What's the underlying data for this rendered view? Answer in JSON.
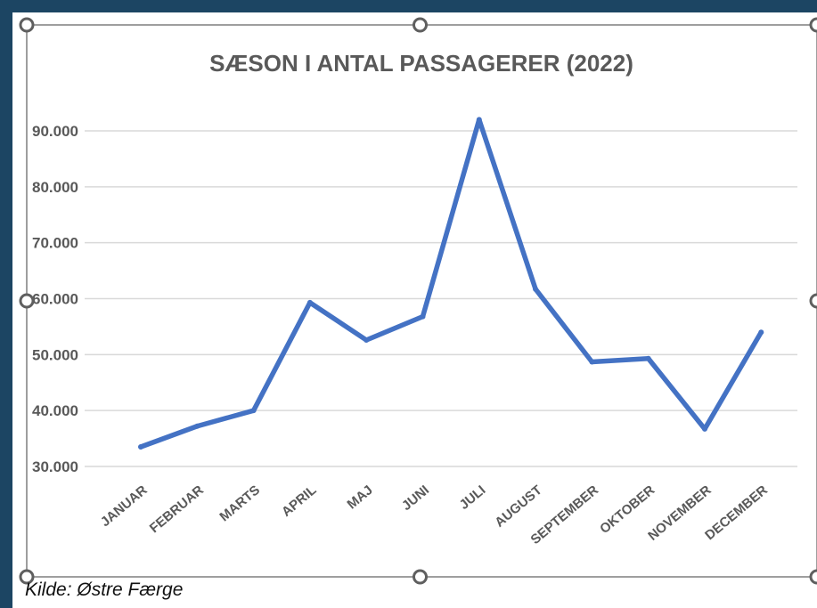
{
  "colors": {
    "background": "#1c4563",
    "chart_area": "#ffffff",
    "line": "#4472c4",
    "gridline": "#d9d9d9",
    "text": "#595959",
    "frame": "#7f7f7f"
  },
  "source_caption": "Kilde: Østre Færge",
  "chart_data": {
    "type": "line",
    "title": "SÆSON I ANTAL PASSAGERER (2022)",
    "xlabel": "",
    "ylabel": "",
    "categories": [
      "JANUAR",
      "FEBRUAR",
      "MARTS",
      "APRIL",
      "MAJ",
      "JUNI",
      "JULI",
      "AUGUST",
      "SEPTEMBER",
      "OKTOBER",
      "NOVEMBER",
      "DECEMBER"
    ],
    "series": [
      {
        "values": [
          33500,
          37200,
          40000,
          59300,
          52600,
          56800,
          92000,
          61700,
          48700,
          49300,
          36700,
          54000
        ]
      }
    ],
    "y_ticks": [
      30000,
      40000,
      50000,
      60000,
      70000,
      80000,
      90000
    ],
    "y_tick_labels": [
      "30.000",
      "40.000",
      "50.000",
      "60.000",
      "70.000",
      "80.000",
      "90.000"
    ],
    "ylim": [
      30000,
      90000
    ],
    "grid": true,
    "legend": "none"
  }
}
